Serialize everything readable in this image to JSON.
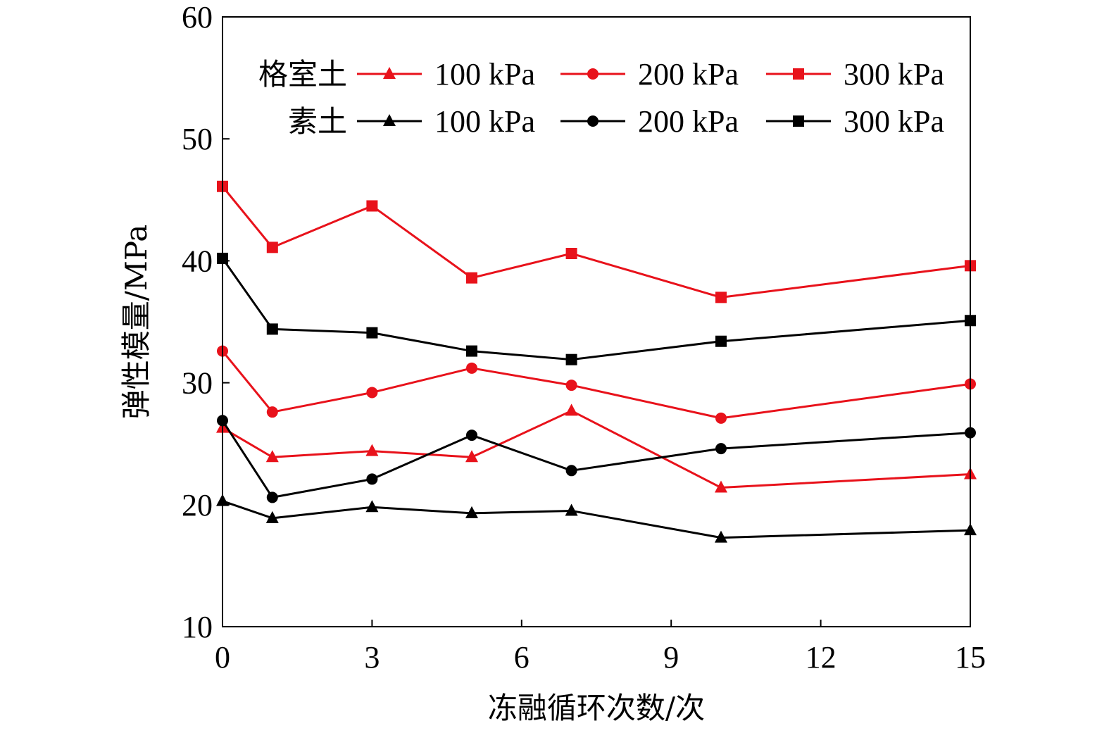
{
  "chart_data": {
    "type": "line",
    "xlabel": "冻融循环次数/次",
    "ylabel": "弹性模量/MPa",
    "xlim": [
      0,
      15
    ],
    "ylim": [
      10,
      60
    ],
    "xticks": [
      0,
      3,
      6,
      9,
      12,
      15
    ],
    "yticks": [
      10,
      20,
      30,
      40,
      50,
      60
    ],
    "x": [
      0,
      1,
      3,
      5,
      7,
      10,
      15
    ],
    "grid": false,
    "legend": {
      "placement": "top",
      "groups": [
        {
          "label": "格室土",
          "color": "#e8121b"
        },
        {
          "label": "素土",
          "color": "#000000"
        }
      ],
      "entries": [
        "100 kPa",
        "200 kPa",
        "300 kPa"
      ]
    },
    "series": [
      {
        "group": "格室土",
        "name": "100 kPa",
        "marker": "triangle",
        "color": "#e8121b",
        "values": [
          26.3,
          23.9,
          24.4,
          23.9,
          27.7,
          21.4,
          22.5
        ]
      },
      {
        "group": "格室土",
        "name": "200 kPa",
        "marker": "circle",
        "color": "#e8121b",
        "values": [
          32.6,
          27.6,
          29.2,
          31.2,
          29.8,
          27.1,
          29.9
        ]
      },
      {
        "group": "格室土",
        "name": "300 kPa",
        "marker": "square",
        "color": "#e8121b",
        "values": [
          46.1,
          41.1,
          44.5,
          38.6,
          40.6,
          37.0,
          39.6
        ]
      },
      {
        "group": "素土",
        "name": "100 kPa",
        "marker": "triangle",
        "color": "#000000",
        "values": [
          20.3,
          18.9,
          19.8,
          19.3,
          19.5,
          17.3,
          17.9
        ]
      },
      {
        "group": "素土",
        "name": "200 kPa",
        "marker": "circle",
        "color": "#000000",
        "values": [
          26.9,
          20.6,
          22.1,
          25.7,
          22.8,
          24.6,
          25.9
        ]
      },
      {
        "group": "素土",
        "name": "300 kPa",
        "marker": "square",
        "color": "#000000",
        "values": [
          40.2,
          34.4,
          34.1,
          32.6,
          31.9,
          33.4,
          35.1
        ]
      }
    ]
  }
}
